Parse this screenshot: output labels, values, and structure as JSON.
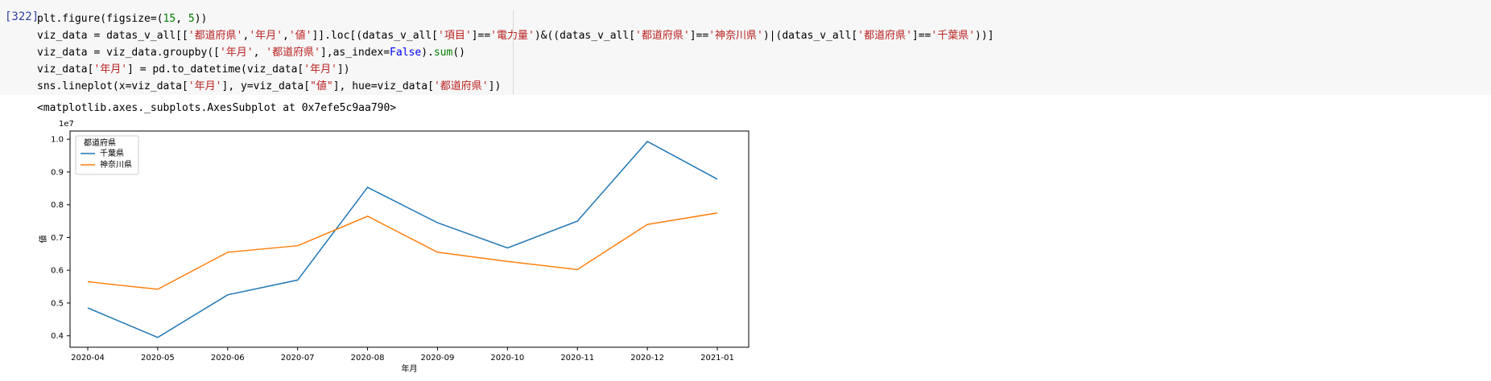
{
  "cell": {
    "prompt": "[322]",
    "output_repr": "<matplotlib.axes._subplots.AxesSubplot at 0x7efe5c9aa790>"
  },
  "code_lines": [
    [
      {
        "t": "plt.figure(figsize=("
      },
      {
        "t": "15",
        "c": "n"
      },
      {
        "t": ", "
      },
      {
        "t": "5",
        "c": "n"
      },
      {
        "t": "))"
      }
    ],
    [
      {
        "t": "viz_data = datas_v_all[["
      },
      {
        "t": "'都道府県'",
        "c": "s"
      },
      {
        "t": ","
      },
      {
        "t": "'年月'",
        "c": "s"
      },
      {
        "t": ","
      },
      {
        "t": "'値'",
        "c": "s"
      },
      {
        "t": "]].loc[(datas_v_all["
      },
      {
        "t": "'項目'",
        "c": "s"
      },
      {
        "t": "]=="
      },
      {
        "t": "'電力量'",
        "c": "s"
      },
      {
        "t": ")&((datas_v_all["
      },
      {
        "t": "'都道府県'",
        "c": "s"
      },
      {
        "t": "]=="
      },
      {
        "t": "'神奈川県'",
        "c": "s"
      },
      {
        "t": ")|(datas_v_all["
      },
      {
        "t": "'都道府県'",
        "c": "s"
      },
      {
        "t": "]=="
      },
      {
        "t": "'千葉県'",
        "c": "s"
      },
      {
        "t": "))]"
      }
    ],
    [
      {
        "t": "viz_data = viz_data.groupby(["
      },
      {
        "t": "'年月'",
        "c": "s"
      },
      {
        "t": ", "
      },
      {
        "t": "'都道府県'",
        "c": "s"
      },
      {
        "t": "],as_index="
      },
      {
        "t": "False",
        "c": "k"
      },
      {
        "t": ")."
      },
      {
        "t": "sum",
        "c": "b"
      },
      {
        "t": "()"
      }
    ],
    [
      {
        "t": "viz_data["
      },
      {
        "t": "'年月'",
        "c": "s"
      },
      {
        "t": "] = pd.to_datetime(viz_data["
      },
      {
        "t": "'年月'",
        "c": "s"
      },
      {
        "t": "])"
      }
    ],
    [
      {
        "t": "sns.lineplot(x=viz_data["
      },
      {
        "t": "'年月'",
        "c": "s"
      },
      {
        "t": "], y=viz_data["
      },
      {
        "t": "\"値\"",
        "c": "s"
      },
      {
        "t": "], hue=viz_data["
      },
      {
        "t": "'都道府県'",
        "c": "s"
      },
      {
        "t": "])"
      }
    ]
  ],
  "chart_data": {
    "type": "line",
    "x": [
      "2020-04",
      "2020-05",
      "2020-06",
      "2020-07",
      "2020-08",
      "2020-09",
      "2020-10",
      "2020-11",
      "2020-12",
      "2021-01"
    ],
    "series": [
      {
        "name": "千葉県",
        "color": "#1f77b4",
        "values": [
          0.485,
          0.395,
          0.525,
          0.57,
          0.853,
          0.745,
          0.668,
          0.75,
          0.993,
          0.878
        ]
      },
      {
        "name": "神奈川県",
        "color": "#ff7f0e",
        "values": [
          0.565,
          0.542,
          0.655,
          0.675,
          0.765,
          0.655,
          0.627,
          0.602,
          0.74,
          0.775
        ]
      }
    ],
    "xlabel": "年月",
    "ylabel": "値",
    "ylim": [
      0.365,
      1.025
    ],
    "yticks": [
      0.4,
      0.5,
      0.6,
      0.7,
      0.8,
      0.9,
      1.0
    ],
    "ytick_labels": [
      "0.4",
      "0.5",
      "0.6",
      "0.7",
      "0.8",
      "0.9",
      "1.0"
    ],
    "offset_text": "1e7",
    "legend": {
      "title": "都道府県",
      "placement": "top-left"
    },
    "grid": false
  }
}
